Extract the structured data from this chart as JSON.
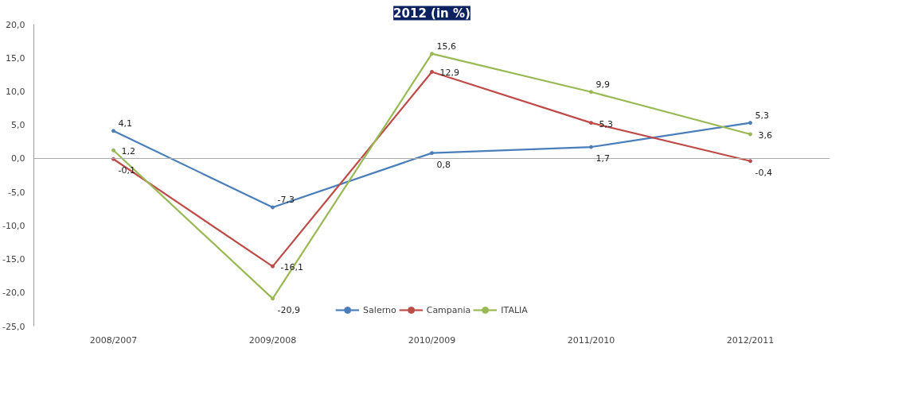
{
  "chart_data": {
    "type": "line",
    "title": "2012 (in %)",
    "categories": [
      "2008/2007",
      "2009/2008",
      "2010/2009",
      "2011/2010",
      "2012/2011"
    ],
    "series": [
      {
        "name": "Salerno",
        "color": "#4a7ebb",
        "values": [
          4.1,
          -7.3,
          0.8,
          1.7,
          5.3
        ],
        "value_labels": [
          "4,1",
          "-7,3",
          "0,8",
          "1,7",
          "5,3"
        ]
      },
      {
        "name": "Campania",
        "color": "#be4b48",
        "values": [
          -0.1,
          -16.1,
          12.9,
          5.3,
          -0.4
        ],
        "value_labels": [
          "-0,1",
          "-16,1",
          "12,9",
          "5,3",
          "-0,4"
        ]
      },
      {
        "name": "ITALIA",
        "color": "#98b954",
        "values": [
          1.2,
          -20.9,
          15.6,
          9.9,
          3.6
        ],
        "value_labels": [
          "1,2",
          "-20,9",
          "15,6",
          "9,9",
          "3,6"
        ]
      }
    ],
    "ylim": [
      -25,
      20
    ],
    "yticks": [
      {
        "value": -25,
        "label": "-25,0"
      },
      {
        "value": -20,
        "label": "-20,0"
      },
      {
        "value": -15,
        "label": "-15,0"
      },
      {
        "value": -10,
        "label": "-10,0"
      },
      {
        "value": -5,
        "label": "-5,0"
      },
      {
        "value": 0,
        "label": "0,0"
      },
      {
        "value": 5,
        "label": "5,0"
      },
      {
        "value": 10,
        "label": "10,0"
      },
      {
        "value": 15,
        "label": "15,0"
      },
      {
        "value": 20,
        "label": "20,0"
      }
    ],
    "legend": "bottom",
    "marker": "circle",
    "line_style": "solid"
  }
}
